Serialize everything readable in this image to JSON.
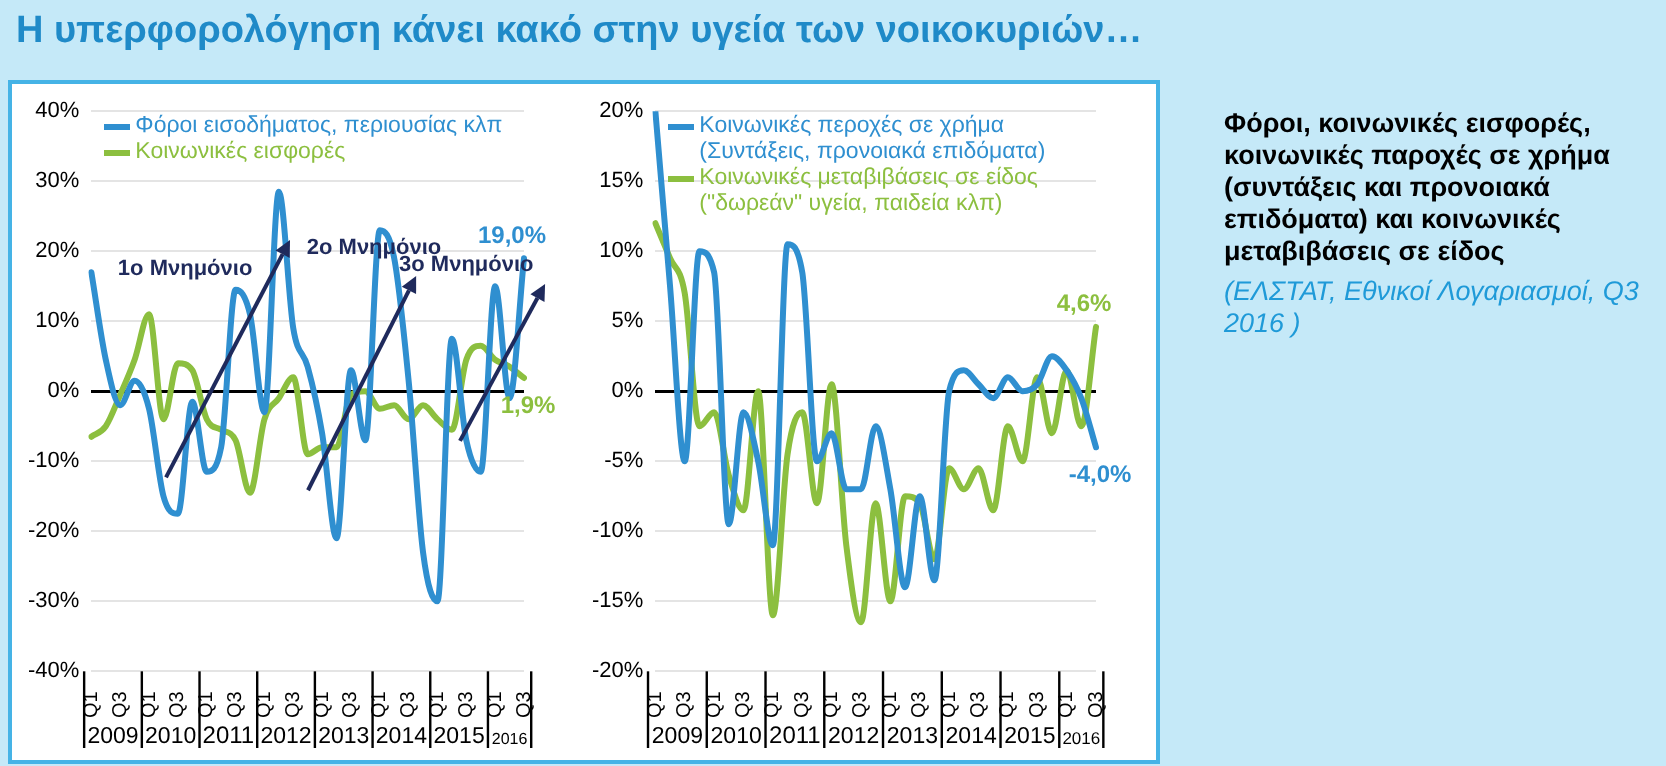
{
  "chart_data": [
    {
      "type": "line",
      "title": "Η υπερφορολόγηση κάνει κακό στην υγεία των νοικοκυριών…",
      "categories": [
        "Q1",
        null,
        "Q3",
        null,
        "Q1",
        null,
        "Q3",
        null,
        "Q1",
        null,
        "Q3",
        null,
        "Q1",
        null,
        "Q3",
        null,
        "Q1",
        null,
        "Q3",
        null,
        "Q1",
        null,
        "Q3",
        null,
        "Q1",
        null,
        "Q3",
        null,
        "Q1",
        null,
        "Q3"
      ],
      "series": [
        {
          "name": "Φόροι εισοδήματος, περιουσίας κλπ",
          "color": "#2f8fd0",
          "values": [
            17,
            4.5,
            -2,
            1.5,
            -2.5,
            -15,
            -17.5,
            -1.5,
            -11.5,
            -8,
            14.5,
            11,
            -3,
            28.5,
            9,
            3.5,
            -6,
            -21,
            3,
            -7,
            23,
            19,
            1.5,
            -23,
            -30,
            7.5,
            -7,
            -11.5,
            15,
            -1,
            19.0
          ],
          "value_labels": [
            null,
            null,
            null,
            null,
            null,
            null,
            null,
            null,
            null,
            null,
            null,
            null,
            null,
            null,
            null,
            null,
            null,
            null,
            null,
            null,
            null,
            null,
            null,
            null,
            null,
            null,
            null,
            null,
            null,
            null,
            "19,0%"
          ]
        },
        {
          "name": "Κοινωνικές εισφορές",
          "color": "#8cbf3f",
          "values": [
            -6.5,
            -5,
            -0.5,
            4.5,
            11,
            -4,
            4,
            3,
            -4,
            -5.5,
            -7,
            -14.5,
            -4,
            -1,
            2,
            -9,
            -8,
            -8,
            -0.5,
            0,
            -2.5,
            -2,
            -4,
            -2,
            -4,
            -5.5,
            4.5,
            6.5,
            4.5,
            3.5,
            1.9
          ],
          "value_labels": [
            null,
            null,
            null,
            null,
            null,
            null,
            null,
            null,
            null,
            null,
            null,
            null,
            null,
            null,
            null,
            null,
            null,
            null,
            null,
            null,
            null,
            null,
            null,
            null,
            null,
            null,
            null,
            null,
            null,
            null,
            "1,9%"
          ]
        }
      ],
      "ylim": [
        -40,
        40
      ],
      "yticks": [
        {
          "value": -40,
          "label": "-40%"
        },
        {
          "value": -30,
          "label": "-30%"
        },
        {
          "value": -20,
          "label": "-20%"
        },
        {
          "value": -10,
          "label": "-10%"
        },
        {
          "value": 0,
          "label": "0%"
        },
        {
          "value": 10,
          "label": "10%"
        },
        {
          "value": 20,
          "label": "20%"
        },
        {
          "value": 30,
          "label": "30%"
        },
        {
          "value": 40,
          "label": "40%"
        }
      ],
      "grid": "y",
      "legend": "top left",
      "annotations": [
        "1ο Μνημόνιο",
        "2ο Μνημόνιο",
        "3ο Μνημόνιο",
        "2009",
        "2010",
        "2011",
        "2012",
        "2013",
        "2014",
        "2015",
        "2016"
      ]
    },
    {
      "type": "line",
      "categories": [
        "Q1",
        null,
        "Q3",
        null,
        "Q1",
        null,
        "Q3",
        null,
        "Q1",
        null,
        "Q3",
        null,
        "Q1",
        null,
        "Q3",
        null,
        "Q1",
        null,
        "Q3",
        null,
        "Q1",
        null,
        "Q3",
        null,
        "Q1",
        null,
        "Q3",
        null,
        "Q1",
        null,
        "Q3"
      ],
      "series": [
        {
          "name": "Κοινωνικές περοχές σε χρήμα (Συντάξεις, προνοιακά επιδόματα)",
          "color": "#2f8fd0",
          "values": [
            20,
            7.5,
            -5,
            10,
            8.5,
            -9.5,
            -1.5,
            -5,
            -11,
            10.5,
            8.5,
            -5,
            -3,
            -7,
            -7,
            -2.5,
            -7,
            -14,
            -7.5,
            -13.5,
            0,
            1.5,
            0.5,
            -0.5,
            1,
            0,
            0.5,
            2.5,
            1.5,
            -0.5,
            -4.0
          ],
          "value_labels": [
            null,
            null,
            null,
            null,
            null,
            null,
            null,
            null,
            null,
            null,
            null,
            null,
            null,
            null,
            null,
            null,
            null,
            null,
            null,
            null,
            null,
            null,
            null,
            null,
            null,
            null,
            null,
            null,
            null,
            null,
            "-4,0%"
          ]
        },
        {
          "name": "Κοινωνικές μεταβιβάσεις σε είδος (\"δωρεάν\" υγεία, παιδεία κλπ)",
          "color": "#8cbf3f",
          "values": [
            12,
            9.5,
            7,
            -2.5,
            -1.5,
            -6,
            -8.5,
            0,
            -16,
            -4.5,
            -1.5,
            -8,
            0.5,
            -11,
            -16.5,
            -8,
            -15,
            -7.5,
            -8,
            -12,
            -5.5,
            -7,
            -5.5,
            -8.5,
            -2.5,
            -5,
            1,
            -3,
            1.5,
            -2.5,
            4.6
          ],
          "value_labels": [
            null,
            null,
            null,
            null,
            null,
            null,
            null,
            null,
            null,
            null,
            null,
            null,
            null,
            null,
            null,
            null,
            null,
            null,
            null,
            null,
            null,
            null,
            null,
            null,
            null,
            null,
            null,
            null,
            null,
            null,
            "4,6%"
          ]
        }
      ],
      "ylim": [
        -20,
        20
      ],
      "yticks": [
        {
          "value": -20,
          "label": "-20%"
        },
        {
          "value": -15,
          "label": "-15%"
        },
        {
          "value": -10,
          "label": "-10%"
        },
        {
          "value": -5,
          "label": "-5%"
        },
        {
          "value": 0,
          "label": "0%"
        },
        {
          "value": 5,
          "label": "5%"
        },
        {
          "value": 10,
          "label": "10%"
        },
        {
          "value": 15,
          "label": "15%"
        },
        {
          "value": 20,
          "label": "20%"
        }
      ],
      "grid": "y",
      "legend": "top left",
      "annotations": [
        "2009",
        "2010",
        "2011",
        "2012",
        "2013",
        "2014",
        "2015",
        "2016"
      ]
    },
    {
      "type": "other",
      "title": "Φόροι, κοινωνικές εισφορές, κοινωνικές παροχές σε χρήμα (συντάξεις και προνοιακά επιδόματα) και κοινωνικές μεταβιβάσεις σε είδος",
      "annotations": [
        "(ΕΛΣΤΑΤ, Εθνικοί Λογαριασμοί, Q3 2016 )"
      ]
    }
  ]
}
